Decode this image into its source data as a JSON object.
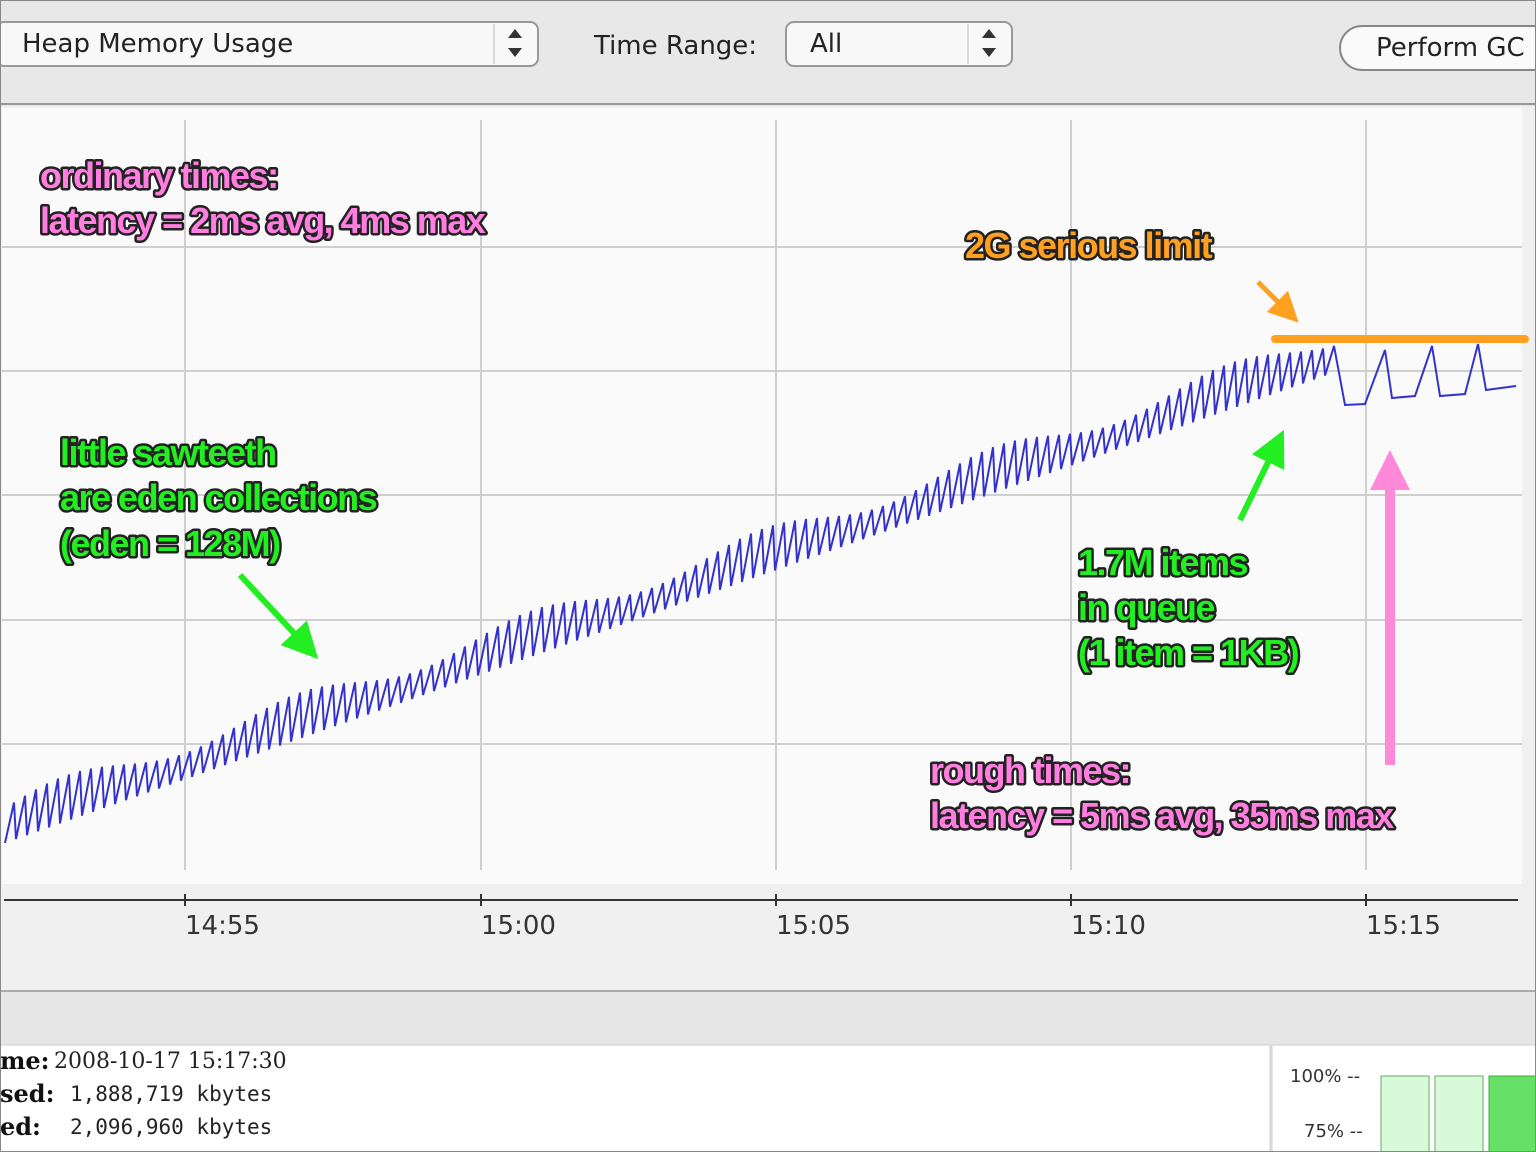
{
  "toolbar": {
    "chart_select": "Heap Memory Usage",
    "time_range_label": "Time Range:",
    "time_range_select": "All",
    "button": "Perform GC"
  },
  "chart": {
    "x_tick_labels": [
      "14:55",
      "15:00",
      "15:05",
      "15:10",
      "15:15"
    ]
  },
  "annotations": [
    {
      "lines": [
        "ordinary times:",
        "latency = 2ms avg, 4ms max"
      ]
    },
    {
      "lines": [
        "2G serious limit"
      ]
    },
    {
      "lines": [
        "little sawteeth",
        "are eden collections",
        "(eden = 128M)"
      ]
    },
    {
      "lines": [
        "1.7M items",
        "in queue",
        "(1 item = 1KB)"
      ]
    },
    {
      "lines": [
        "rough times:",
        "latency = 5ms avg, 35ms max"
      ]
    }
  ],
  "details": {
    "rows": [
      {
        "label": "me:",
        "value": "2008-10-17 15:17:30"
      },
      {
        "label": "sed:",
        "value": "1,888,719 kbytes"
      },
      {
        "label": "ed:",
        "value": "2,096,960 kbytes"
      }
    ]
  },
  "gauge": {
    "labels": [
      "100% --",
      "75% --"
    ]
  }
}
